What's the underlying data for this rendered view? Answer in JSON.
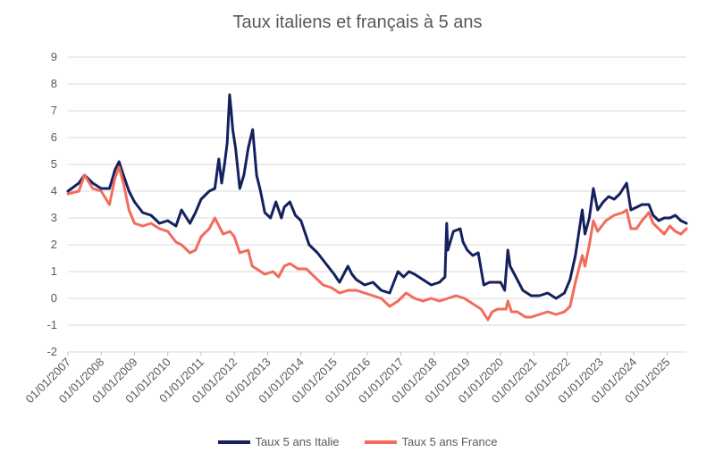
{
  "chart_data": {
    "type": "line",
    "title": "Taux italiens et français à 5 ans",
    "xlabel": "",
    "ylabel": "",
    "ylim": [
      -2,
      9
    ],
    "y_ticks": [
      "-2",
      "-1",
      "0",
      "1",
      "2",
      "3",
      "4",
      "5",
      "6",
      "7",
      "8",
      "9"
    ],
    "x_ticks": [
      "01/01/2007",
      "01/01/2008",
      "01/01/2009",
      "01/01/2010",
      "01/01/2011",
      "01/01/2012",
      "01/01/2013",
      "01/01/2014",
      "01/01/2015",
      "01/01/2016",
      "01/01/2017",
      "01/01/2018",
      "01/01/2019",
      "01/01/2020",
      "01/01/2021",
      "01/01/2022",
      "01/01/2023",
      "01/01/2024",
      "01/01/2025"
    ],
    "x_range": [
      "2007-01-01",
      "2025-08-01"
    ],
    "grid": true,
    "legend_position": "bottom",
    "series": [
      {
        "name": "Taux 5 ans Italie",
        "color": "#14215e",
        "x": [
          "2007-01-01",
          "2007-05-01",
          "2007-07-01",
          "2007-10-01",
          "2008-01-01",
          "2008-04-01",
          "2008-06-01",
          "2008-07-15",
          "2008-09-01",
          "2008-11-01",
          "2009-01-01",
          "2009-04-01",
          "2009-07-01",
          "2009-10-01",
          "2010-01-01",
          "2010-04-01",
          "2010-06-01",
          "2010-09-01",
          "2010-11-01",
          "2011-01-01",
          "2011-04-01",
          "2011-06-01",
          "2011-07-15",
          "2011-08-15",
          "2011-09-15",
          "2011-10-15",
          "2011-11-10",
          "2011-11-25",
          "2011-12-15",
          "2012-01-15",
          "2012-03-01",
          "2012-04-15",
          "2012-06-01",
          "2012-07-20",
          "2012-09-01",
          "2012-10-15",
          "2012-12-01",
          "2013-02-01",
          "2013-04-01",
          "2013-06-01",
          "2013-07-01",
          "2013-09-01",
          "2013-11-01",
          "2014-01-01",
          "2014-04-01",
          "2014-07-01",
          "2014-10-01",
          "2015-01-01",
          "2015-03-01",
          "2015-06-01",
          "2015-07-15",
          "2015-09-01",
          "2015-12-01",
          "2016-03-01",
          "2016-06-01",
          "2016-09-01",
          "2016-12-01",
          "2017-02-01",
          "2017-04-01",
          "2017-06-01",
          "2017-09-01",
          "2017-12-01",
          "2018-03-01",
          "2018-05-01",
          "2018-05-20",
          "2018-06-01",
          "2018-08-01",
          "2018-10-15",
          "2018-11-15",
          "2019-01-01",
          "2019-03-01",
          "2019-05-01",
          "2019-07-01",
          "2019-09-01",
          "2019-11-01",
          "2020-01-01",
          "2020-02-15",
          "2020-03-20",
          "2020-04-15",
          "2020-06-01",
          "2020-09-01",
          "2020-12-01",
          "2021-03-01",
          "2021-06-01",
          "2021-09-01",
          "2021-12-01",
          "2022-02-01",
          "2022-04-01",
          "2022-06-15",
          "2022-07-15",
          "2022-09-01",
          "2022-10-15",
          "2022-12-01",
          "2023-02-01",
          "2023-04-01",
          "2023-06-01",
          "2023-08-01",
          "2023-10-15",
          "2023-12-01",
          "2024-02-01",
          "2024-04-01",
          "2024-06-15",
          "2024-08-01",
          "2024-10-01",
          "2024-12-01",
          "2025-02-01",
          "2025-04-01",
          "2025-06-01",
          "2025-08-01"
        ],
        "y": [
          4.0,
          4.3,
          4.6,
          4.3,
          4.1,
          4.1,
          4.8,
          5.1,
          4.6,
          4.0,
          3.6,
          3.2,
          3.1,
          2.8,
          2.9,
          2.7,
          3.3,
          2.8,
          3.2,
          3.7,
          4.0,
          4.1,
          5.2,
          4.3,
          5.0,
          5.8,
          7.6,
          7.1,
          6.3,
          5.6,
          4.1,
          4.6,
          5.6,
          6.3,
          4.6,
          4.0,
          3.2,
          3.0,
          3.6,
          3.0,
          3.4,
          3.6,
          3.1,
          2.9,
          2.0,
          1.7,
          1.3,
          0.9,
          0.6,
          1.2,
          0.9,
          0.7,
          0.5,
          0.6,
          0.3,
          0.2,
          1.0,
          0.8,
          1.0,
          0.9,
          0.7,
          0.5,
          0.6,
          0.8,
          2.8,
          1.8,
          2.5,
          2.6,
          2.1,
          1.8,
          1.6,
          1.7,
          0.5,
          0.6,
          0.6,
          0.6,
          0.3,
          1.8,
          1.2,
          0.9,
          0.3,
          0.1,
          0.1,
          0.2,
          0.0,
          0.2,
          0.7,
          1.6,
          3.3,
          2.4,
          3.0,
          4.1,
          3.3,
          3.6,
          3.8,
          3.7,
          3.9,
          4.3,
          3.3,
          3.4,
          3.5,
          3.5,
          3.1,
          2.9,
          3.0,
          3.0,
          3.1,
          2.9,
          2.8
        ]
      },
      {
        "name": "Taux 5 ans France",
        "color": "#f26b5b",
        "x": [
          "2007-01-01",
          "2007-05-01",
          "2007-07-01",
          "2007-10-01",
          "2008-01-01",
          "2008-04-01",
          "2008-06-01",
          "2008-07-15",
          "2008-09-01",
          "2008-11-01",
          "2009-01-01",
          "2009-04-01",
          "2009-07-01",
          "2009-10-01",
          "2010-01-01",
          "2010-04-01",
          "2010-06-01",
          "2010-09-01",
          "2010-11-01",
          "2011-01-01",
          "2011-04-01",
          "2011-06-01",
          "2011-09-01",
          "2011-11-15",
          "2012-01-01",
          "2012-03-01",
          "2012-06-01",
          "2012-07-15",
          "2012-09-01",
          "2012-12-01",
          "2013-03-01",
          "2013-05-01",
          "2013-07-01",
          "2013-09-01",
          "2013-12-01",
          "2014-03-01",
          "2014-06-01",
          "2014-09-01",
          "2014-12-01",
          "2015-03-01",
          "2015-06-01",
          "2015-09-01",
          "2015-12-01",
          "2016-03-01",
          "2016-06-01",
          "2016-09-01",
          "2016-12-01",
          "2017-03-01",
          "2017-06-01",
          "2017-09-01",
          "2017-12-01",
          "2018-03-01",
          "2018-06-01",
          "2018-09-01",
          "2018-12-01",
          "2019-03-01",
          "2019-06-01",
          "2019-08-15",
          "2019-10-01",
          "2019-12-01",
          "2020-03-01",
          "2020-03-20",
          "2020-05-01",
          "2020-07-01",
          "2020-10-01",
          "2020-12-01",
          "2021-03-01",
          "2021-06-01",
          "2021-09-01",
          "2021-12-01",
          "2022-02-01",
          "2022-04-01",
          "2022-06-15",
          "2022-07-15",
          "2022-09-01",
          "2022-10-15",
          "2022-12-01",
          "2023-03-01",
          "2023-06-01",
          "2023-09-01",
          "2023-10-15",
          "2023-12-01",
          "2024-02-01",
          "2024-04-01",
          "2024-06-15",
          "2024-08-01",
          "2024-10-01",
          "2024-12-01",
          "2025-02-01",
          "2025-04-01",
          "2025-06-01",
          "2025-08-01"
        ],
        "y": [
          3.9,
          4.0,
          4.6,
          4.1,
          4.0,
          3.5,
          4.5,
          4.9,
          4.3,
          3.3,
          2.8,
          2.7,
          2.8,
          2.6,
          2.5,
          2.1,
          2.0,
          1.7,
          1.8,
          2.3,
          2.6,
          3.0,
          2.4,
          2.5,
          2.3,
          1.7,
          1.8,
          1.2,
          1.1,
          0.9,
          1.0,
          0.8,
          1.2,
          1.3,
          1.1,
          1.1,
          0.8,
          0.5,
          0.4,
          0.2,
          0.3,
          0.3,
          0.2,
          0.1,
          0.0,
          -0.3,
          -0.1,
          0.2,
          0.0,
          -0.1,
          0.0,
          -0.1,
          0.0,
          0.1,
          0.0,
          -0.2,
          -0.4,
          -0.8,
          -0.5,
          -0.4,
          -0.4,
          -0.1,
          -0.5,
          -0.5,
          -0.7,
          -0.7,
          -0.6,
          -0.5,
          -0.6,
          -0.5,
          -0.3,
          0.6,
          1.6,
          1.2,
          2.0,
          2.9,
          2.5,
          2.9,
          3.1,
          3.2,
          3.3,
          2.6,
          2.6,
          2.9,
          3.2,
          2.8,
          2.6,
          2.4,
          2.7,
          2.5,
          2.4,
          2.6
        ]
      }
    ]
  }
}
